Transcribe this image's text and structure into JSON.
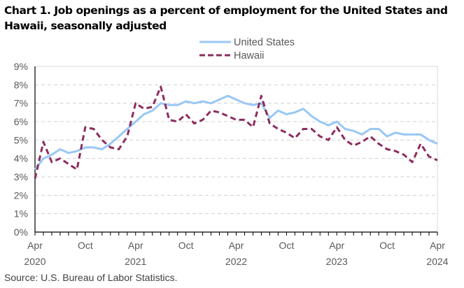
{
  "chart_data": {
    "type": "line",
    "title": "Chart 1. Job openings as a percent of employment for the United States and Hawaii, seasonally adjusted",
    "xlabel": "",
    "ylabel": "",
    "ylim": [
      0,
      9
    ],
    "yticks": [
      0,
      1,
      2,
      3,
      4,
      5,
      6,
      7,
      8,
      9
    ],
    "ytick_labels": [
      "0%",
      "1%",
      "2%",
      "3%",
      "4%",
      "5%",
      "6%",
      "7%",
      "8%",
      "9%"
    ],
    "grid": true,
    "legend_position": "top-center",
    "x": [
      "Apr 2020",
      "May 2020",
      "Jun 2020",
      "Jul 2020",
      "Aug 2020",
      "Sep 2020",
      "Oct 2020",
      "Nov 2020",
      "Dec 2020",
      "Jan 2021",
      "Feb 2021",
      "Mar 2021",
      "Apr 2021",
      "May 2021",
      "Jun 2021",
      "Jul 2021",
      "Aug 2021",
      "Sep 2021",
      "Oct 2021",
      "Nov 2021",
      "Dec 2021",
      "Jan 2022",
      "Feb 2022",
      "Mar 2022",
      "Apr 2022",
      "May 2022",
      "Jun 2022",
      "Jul 2022",
      "Aug 2022",
      "Sep 2022",
      "Oct 2022",
      "Nov 2022",
      "Dec 2022",
      "Jan 2023",
      "Feb 2023",
      "Mar 2023",
      "Apr 2023",
      "May 2023",
      "Jun 2023",
      "Jul 2023",
      "Aug 2023",
      "Sep 2023",
      "Oct 2023",
      "Nov 2023",
      "Dec 2023",
      "Jan 2024",
      "Feb 2024",
      "Mar 2024",
      "Apr 2024"
    ],
    "xtick_labels": [
      {
        "index": 0,
        "month": "Apr",
        "year": "2020"
      },
      {
        "index": 6,
        "month": "Oct",
        "year": ""
      },
      {
        "index": 12,
        "month": "Apr",
        "year": "2021"
      },
      {
        "index": 18,
        "month": "Oct",
        "year": ""
      },
      {
        "index": 24,
        "month": "Apr",
        "year": "2022"
      },
      {
        "index": 30,
        "month": "Oct",
        "year": ""
      },
      {
        "index": 36,
        "month": "Apr",
        "year": "2023"
      },
      {
        "index": 42,
        "month": "Oct",
        "year": ""
      },
      {
        "index": 48,
        "month": "Apr",
        "year": "2024"
      }
    ],
    "series": [
      {
        "name": "United States",
        "color": "#99C7F6",
        "style": "solid",
        "values": [
          3.4,
          4.0,
          4.2,
          4.5,
          4.3,
          4.4,
          4.6,
          4.6,
          4.5,
          4.8,
          5.2,
          5.6,
          6.0,
          6.4,
          6.6,
          7.0,
          6.9,
          6.9,
          7.1,
          7.0,
          7.1,
          7.0,
          7.2,
          7.4,
          7.2,
          7.0,
          6.9,
          7.0,
          6.2,
          6.6,
          6.4,
          6.5,
          6.7,
          6.3,
          6.0,
          5.8,
          6.0,
          5.6,
          5.5,
          5.3,
          5.6,
          5.6,
          5.2,
          5.4,
          5.3,
          5.3,
          5.3,
          5.0,
          4.8
        ]
      },
      {
        "name": "Hawaii",
        "color": "#8C2D5E",
        "style": "dashed",
        "values": [
          2.9,
          4.9,
          3.8,
          4.0,
          3.7,
          3.4,
          5.7,
          5.6,
          5.0,
          4.6,
          4.5,
          5.2,
          7.0,
          6.7,
          6.8,
          7.9,
          6.1,
          6.0,
          6.4,
          5.9,
          6.1,
          6.6,
          6.5,
          6.3,
          6.1,
          6.1,
          5.7,
          7.4,
          5.9,
          5.6,
          5.4,
          5.1,
          5.6,
          5.6,
          5.2,
          5.0,
          5.7,
          5.0,
          4.7,
          4.9,
          5.2,
          4.8,
          4.5,
          4.4,
          4.2,
          3.8,
          4.8,
          4.1,
          3.9
        ]
      }
    ],
    "source": "Source: U.S. Bureau of Labor Statistics."
  },
  "title_line1": "Chart 1. Job openings as a percent of employment for the United States and",
  "title_line2": "Hawaii, seasonally adjusted"
}
